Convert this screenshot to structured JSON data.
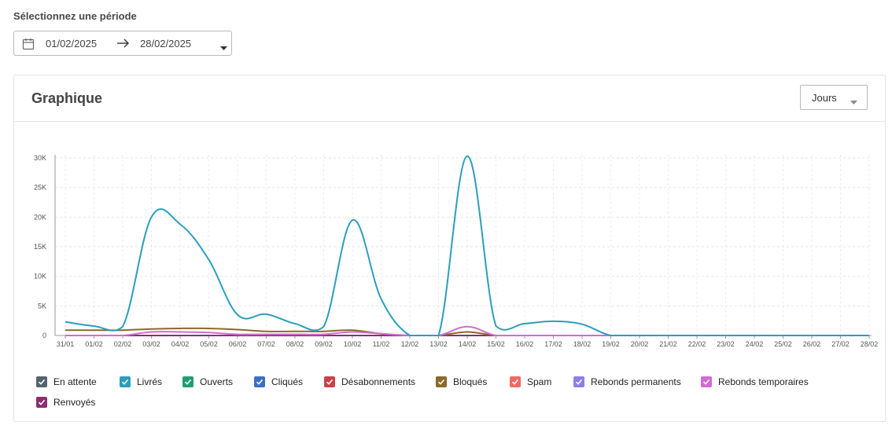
{
  "period": {
    "label": "Sélectionnez une période",
    "start_date": "01/02/2025",
    "end_date": "28/02/2025",
    "icon": "calendar-icon"
  },
  "card": {
    "title": "Graphique",
    "granularity": "Jours"
  },
  "chart_data": {
    "type": "line",
    "title": "",
    "xlabel": "",
    "ylabel": "",
    "ylim": [
      0,
      30000
    ],
    "grid": true,
    "legend_position": "bottom",
    "y_ticks": [
      "0",
      "5K",
      "10K",
      "15K",
      "20K",
      "25K",
      "30K"
    ],
    "y_tick_values": [
      0,
      5000,
      10000,
      15000,
      20000,
      25000,
      30000
    ],
    "x": [
      "31/01",
      "01/02",
      "02/02",
      "03/02",
      "04/02",
      "05/02",
      "06/02",
      "07/02",
      "08/02",
      "09/02",
      "10/02",
      "11/02",
      "12/02",
      "13/02",
      "14/02",
      "15/02",
      "16/02",
      "17/02",
      "18/02",
      "19/02",
      "20/02",
      "21/02",
      "22/02",
      "23/02",
      "24/02",
      "25/02",
      "26/02",
      "27/02",
      "28/02"
    ],
    "series": [
      {
        "name": "En attente",
        "color": "#546370",
        "values": [
          0,
          0,
          0,
          0,
          0,
          0,
          0,
          0,
          0,
          0,
          0,
          0,
          0,
          0,
          0,
          0,
          0,
          0,
          0,
          0,
          0,
          0,
          0,
          0,
          0,
          0,
          0,
          0,
          0
        ]
      },
      {
        "name": "Livrés",
        "color": "#2a9fbc",
        "values": [
          2300,
          1600,
          1500,
          20000,
          18800,
          12800,
          3500,
          3600,
          2000,
          1500,
          19500,
          6200,
          0,
          0,
          30300,
          1600,
          2000,
          2400,
          1900,
          0,
          0,
          0,
          0,
          0,
          0,
          0,
          0,
          0,
          0
        ]
      },
      {
        "name": "Ouverts",
        "color": "#1e9e73",
        "values": [
          0,
          0,
          0,
          0,
          0,
          0,
          0,
          0,
          0,
          0,
          0,
          0,
          0,
          0,
          0,
          0,
          0,
          0,
          0,
          0,
          0,
          0,
          0,
          0,
          0,
          0,
          0,
          0,
          0
        ]
      },
      {
        "name": "Cliqués",
        "color": "#3d6fc4",
        "values": [
          0,
          0,
          0,
          0,
          0,
          0,
          0,
          0,
          0,
          0,
          0,
          0,
          0,
          0,
          0,
          0,
          0,
          0,
          0,
          0,
          0,
          0,
          0,
          0,
          0,
          0,
          0,
          0,
          0
        ]
      },
      {
        "name": "Désabonnements",
        "color": "#c9424a",
        "values": [
          0,
          0,
          0,
          0,
          0,
          0,
          0,
          0,
          0,
          0,
          0,
          0,
          0,
          0,
          0,
          0,
          0,
          0,
          0,
          0,
          0,
          0,
          0,
          0,
          0,
          0,
          0,
          0,
          0
        ]
      },
      {
        "name": "Bloqués",
        "color": "#8a6a2a",
        "values": [
          900,
          900,
          900,
          1100,
          1200,
          1200,
          1000,
          700,
          700,
          700,
          900,
          300,
          0,
          0,
          600,
          0,
          0,
          0,
          0,
          0,
          0,
          0,
          0,
          0,
          0,
          0,
          0,
          0,
          0
        ]
      },
      {
        "name": "Spam",
        "color": "#ee6a63",
        "values": [
          0,
          0,
          0,
          0,
          0,
          0,
          0,
          0,
          0,
          0,
          0,
          0,
          0,
          0,
          0,
          0,
          0,
          0,
          0,
          0,
          0,
          0,
          0,
          0,
          0,
          0,
          0,
          0,
          0
        ]
      },
      {
        "name": "Rebonds permanents",
        "color": "#8e7ee8",
        "values": [
          0,
          0,
          0,
          0,
          0,
          0,
          0,
          0,
          0,
          0,
          0,
          0,
          0,
          0,
          0,
          0,
          0,
          0,
          0,
          0,
          0,
          0,
          0,
          0,
          0,
          0,
          0,
          0,
          0
        ]
      },
      {
        "name": "Rebonds temporaires",
        "color": "#d36ad4",
        "values": [
          0,
          0,
          0,
          600,
          600,
          500,
          200,
          200,
          200,
          200,
          600,
          300,
          0,
          0,
          1500,
          0,
          0,
          0,
          0,
          0,
          0,
          0,
          0,
          0,
          0,
          0,
          0,
          0,
          0
        ]
      },
      {
        "name": "Renvoyés",
        "color": "#8a2f72",
        "values": [
          0,
          0,
          0,
          0,
          0,
          0,
          0,
          0,
          0,
          0,
          0,
          0,
          0,
          0,
          0,
          0,
          0,
          0,
          0,
          0,
          0,
          0,
          0,
          0,
          0,
          0,
          0,
          0,
          0
        ]
      }
    ]
  }
}
